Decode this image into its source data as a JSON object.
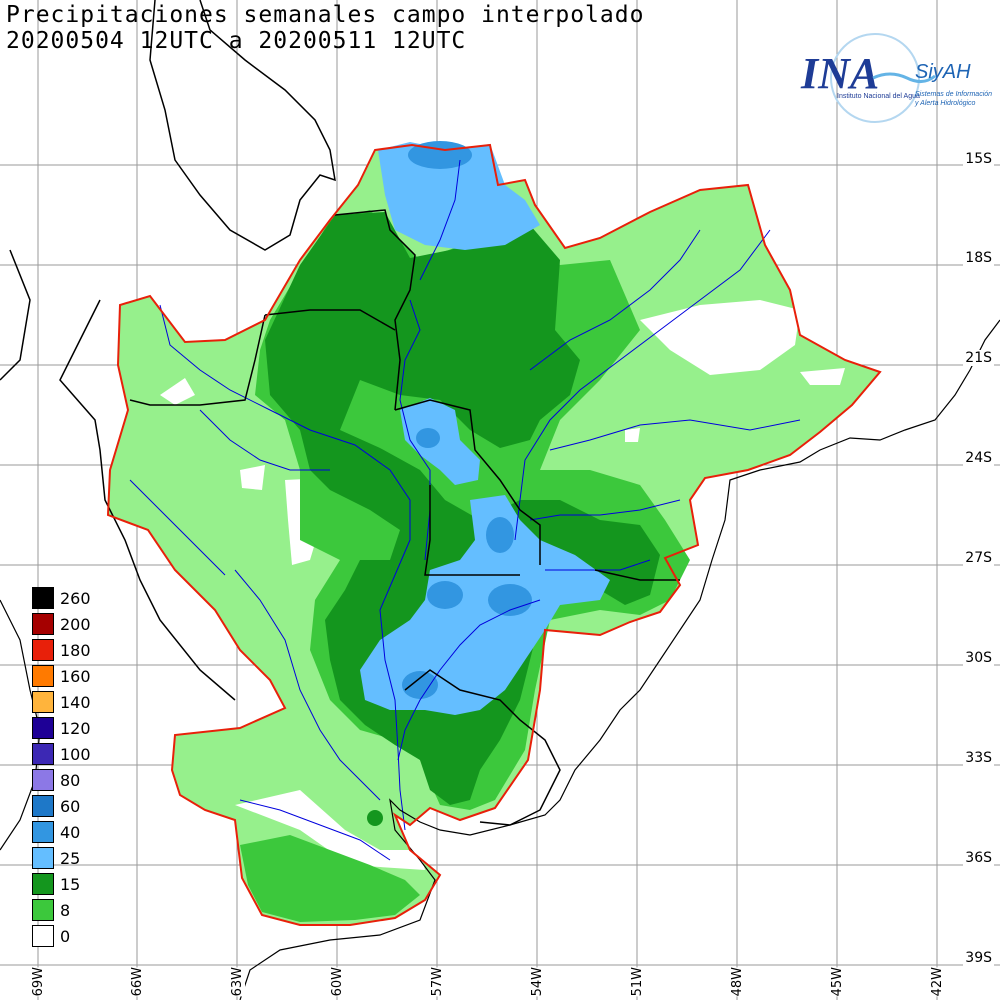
{
  "title": {
    "line1": "Precipitaciones semanales campo interpolado",
    "line2": "20200504 12UTC a 20200511 12UTC"
  },
  "logo": {
    "brand": "INA",
    "system": "SiyAH",
    "subtitle": "Instituto Nacional del Agua",
    "tagline_1": "Sistemas de Información",
    "tagline_2": "y Alerta Hidrológico"
  },
  "lat_labels": [
    "15S",
    "18S",
    "21S",
    "24S",
    "27S",
    "30S",
    "33S",
    "36S",
    "39S"
  ],
  "lon_labels": [
    "69W",
    "66W",
    "63W",
    "60W",
    "57W",
    "54W",
    "51W",
    "48W",
    "45W",
    "42W"
  ],
  "legend": [
    {
      "label": "260",
      "color": "#000000"
    },
    {
      "label": "200",
      "color": "#a50000"
    },
    {
      "label": "180",
      "color": "#e8200a"
    },
    {
      "label": "160",
      "color": "#ff7a00"
    },
    {
      "label": "140",
      "color": "#ffb43c"
    },
    {
      "label": "120",
      "color": "#1e0096"
    },
    {
      "label": "100",
      "color": "#3c28b4"
    },
    {
      "label": "80",
      "color": "#8c78e6"
    },
    {
      "label": "60",
      "color": "#1e78c8"
    },
    {
      "label": "40",
      "color": "#3296e1"
    },
    {
      "label": "25",
      "color": "#64beff"
    },
    {
      "label": "15",
      "color": "#14961e"
    },
    {
      "label": "8",
      "color": "#3cc83c"
    },
    {
      "label": "0",
      "color": "#ffffff"
    }
  ],
  "colors": {
    "basin_outline": "#e8200a",
    "rivers": "#0000dd",
    "borders": "#000000",
    "band_8": "#96f08c",
    "band_15_light": "#3cc83c",
    "band_15": "#14961e",
    "band_25": "#64beff",
    "band_40": "#3296e1"
  }
}
